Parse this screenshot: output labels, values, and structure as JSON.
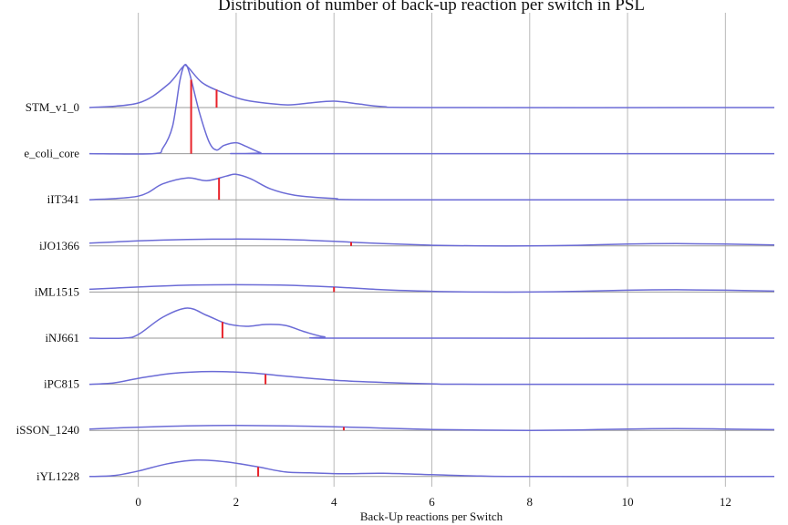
{
  "chart_data": {
    "type": "ridgeline",
    "title": "Distribution of number of back-up reaction per switch in PSL",
    "xlabel": "Back-Up reactions per Switch",
    "ylabel": "",
    "xlim": [
      -1,
      13
    ],
    "x_ticks": [
      0,
      2,
      4,
      6,
      8,
      10,
      12
    ],
    "grid": true,
    "colors": {
      "density": "#6b6bd6",
      "mean_marker": "#e8222a",
      "grid": "#b9b9b9"
    },
    "series": [
      {
        "name": "STM_v1_0",
        "mean": 1.6,
        "density": [
          [
            -1,
            0
          ],
          [
            0,
            0.1
          ],
          [
            0.6,
            0.5
          ],
          [
            0.9,
            0.88
          ],
          [
            1.0,
            0.9
          ],
          [
            1.3,
            0.55
          ],
          [
            1.7,
            0.34
          ],
          [
            2.2,
            0.16
          ],
          [
            3.0,
            0.06
          ],
          [
            3.5,
            0.1
          ],
          [
            4.0,
            0.14
          ],
          [
            4.5,
            0.08
          ],
          [
            5.0,
            0.02
          ],
          [
            6,
            0
          ],
          [
            13,
            0
          ]
        ]
      },
      {
        "name": "e_coli_core",
        "mean": 1.08,
        "density": [
          [
            -1,
            0
          ],
          [
            0.3,
            0
          ],
          [
            0.5,
            0.12
          ],
          [
            0.7,
            0.6
          ],
          [
            0.85,
            1.6
          ],
          [
            0.95,
            1.95
          ],
          [
            1.05,
            1.75
          ],
          [
            1.25,
            0.9
          ],
          [
            1.45,
            0.25
          ],
          [
            1.6,
            0.08
          ],
          [
            1.75,
            0.18
          ],
          [
            2.0,
            0.24
          ],
          [
            2.2,
            0.16
          ],
          [
            2.5,
            0.02
          ],
          [
            2.7,
            0
          ],
          [
            13,
            0
          ]
        ]
      },
      {
        "name": "iIT341",
        "mean": 1.65,
        "density": [
          [
            -1,
            0
          ],
          [
            0,
            0.08
          ],
          [
            0.5,
            0.35
          ],
          [
            1.0,
            0.48
          ],
          [
            1.4,
            0.42
          ],
          [
            1.8,
            0.52
          ],
          [
            2.0,
            0.56
          ],
          [
            2.3,
            0.46
          ],
          [
            2.7,
            0.24
          ],
          [
            3.2,
            0.1
          ],
          [
            4.0,
            0.03
          ],
          [
            5,
            0
          ],
          [
            13,
            0
          ]
        ]
      },
      {
        "name": "iJO1366",
        "mean": 4.35,
        "density": [
          [
            -1,
            0.06
          ],
          [
            0,
            0.11
          ],
          [
            1,
            0.14
          ],
          [
            2,
            0.15
          ],
          [
            3,
            0.14
          ],
          [
            4,
            0.1
          ],
          [
            5,
            0.05
          ],
          [
            6,
            0.015
          ],
          [
            7,
            0.0
          ],
          [
            8,
            0.0
          ],
          [
            9,
            0.015
          ],
          [
            10,
            0.04
          ],
          [
            11,
            0.05
          ],
          [
            12,
            0.04
          ],
          [
            13,
            0.02
          ]
        ]
      },
      {
        "name": "iML1515",
        "mean": 4.0,
        "density": [
          [
            -1,
            0.06
          ],
          [
            0,
            0.11
          ],
          [
            1,
            0.15
          ],
          [
            2,
            0.16
          ],
          [
            3,
            0.15
          ],
          [
            4,
            0.11
          ],
          [
            5,
            0.05
          ],
          [
            6,
            0.015
          ],
          [
            7,
            0.0
          ],
          [
            8,
            0.0
          ],
          [
            9,
            0.015
          ],
          [
            10,
            0.04
          ],
          [
            11,
            0.05
          ],
          [
            12,
            0.04
          ],
          [
            13,
            0.02
          ]
        ]
      },
      {
        "name": "iNJ661",
        "mean": 1.72,
        "density": [
          [
            -1,
            0
          ],
          [
            -0.3,
            0
          ],
          [
            0,
            0.08
          ],
          [
            0.5,
            0.46
          ],
          [
            1.0,
            0.66
          ],
          [
            1.4,
            0.5
          ],
          [
            1.8,
            0.32
          ],
          [
            2.2,
            0.26
          ],
          [
            2.6,
            0.3
          ],
          [
            3.0,
            0.28
          ],
          [
            3.4,
            0.14
          ],
          [
            3.8,
            0.03
          ],
          [
            4.3,
            0
          ],
          [
            13,
            0
          ]
        ]
      },
      {
        "name": "iPC815",
        "mean": 2.6,
        "density": [
          [
            -1,
            0
          ],
          [
            -0.5,
            0.03
          ],
          [
            0,
            0.13
          ],
          [
            0.7,
            0.24
          ],
          [
            1.5,
            0.28
          ],
          [
            2.3,
            0.25
          ],
          [
            3.0,
            0.18
          ],
          [
            4.0,
            0.09
          ],
          [
            5.0,
            0.04
          ],
          [
            6.0,
            0.01
          ],
          [
            7,
            0
          ],
          [
            13,
            0
          ]
        ]
      },
      {
        "name": "iSSON_1240",
        "mean": 4.2,
        "density": [
          [
            -1,
            0.03
          ],
          [
            0,
            0.07
          ],
          [
            1,
            0.1
          ],
          [
            2,
            0.11
          ],
          [
            3,
            0.1
          ],
          [
            4,
            0.08
          ],
          [
            5,
            0.05
          ],
          [
            6,
            0.02
          ],
          [
            7,
            0.005
          ],
          [
            8,
            0
          ],
          [
            9,
            0.01
          ],
          [
            10,
            0.03
          ],
          [
            11,
            0.04
          ],
          [
            12,
            0.03
          ],
          [
            13,
            0.015
          ]
        ]
      },
      {
        "name": "iYL1228",
        "mean": 2.45,
        "density": [
          [
            -1,
            0
          ],
          [
            -0.5,
            0.02
          ],
          [
            0,
            0.12
          ],
          [
            0.6,
            0.28
          ],
          [
            1.2,
            0.36
          ],
          [
            1.8,
            0.32
          ],
          [
            2.4,
            0.22
          ],
          [
            3.0,
            0.1
          ],
          [
            3.5,
            0.08
          ],
          [
            4.2,
            0.06
          ],
          [
            5.0,
            0.07
          ],
          [
            6.0,
            0.04
          ],
          [
            7.0,
            0.01
          ],
          [
            8,
            0
          ],
          [
            13,
            0
          ]
        ]
      }
    ]
  }
}
